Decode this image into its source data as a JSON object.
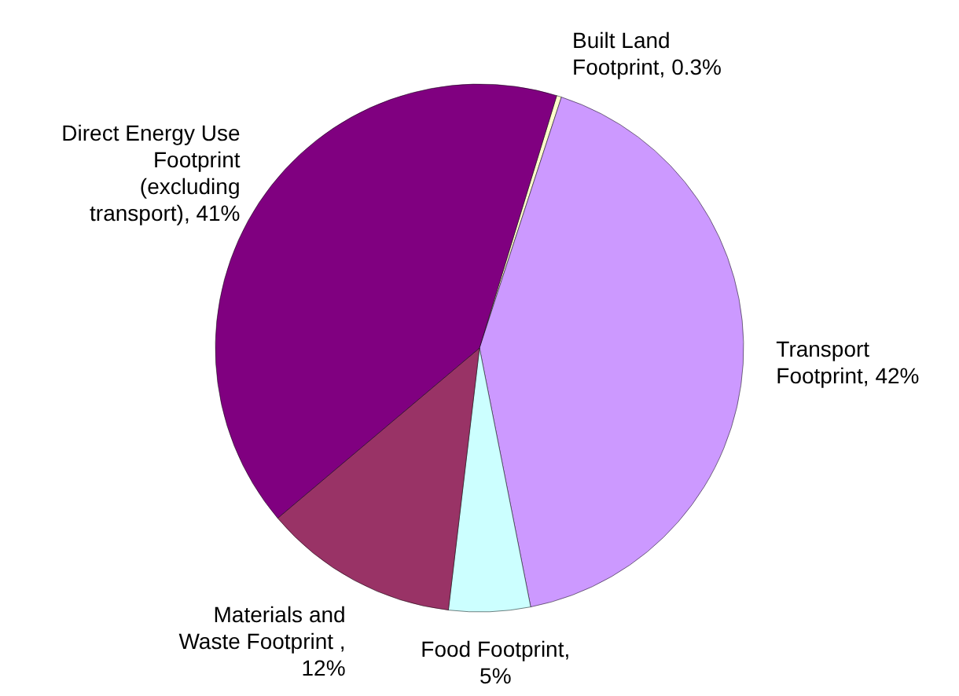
{
  "chart_data": {
    "type": "pie",
    "categories": [
      "Built Land Footprint, 0.3%",
      "Transport Footprint, 42%",
      "Food Footprint, 5%",
      "Materials and Waste Footprint , 12%",
      "Direct Energy Use Footprint (excluding transport), 41%"
    ],
    "values": [
      0.3,
      42,
      5,
      12,
      41
    ],
    "colors": [
      "#ffffcc",
      "#cc99ff",
      "#ccffff",
      "#993366",
      "#800080"
    ]
  }
}
